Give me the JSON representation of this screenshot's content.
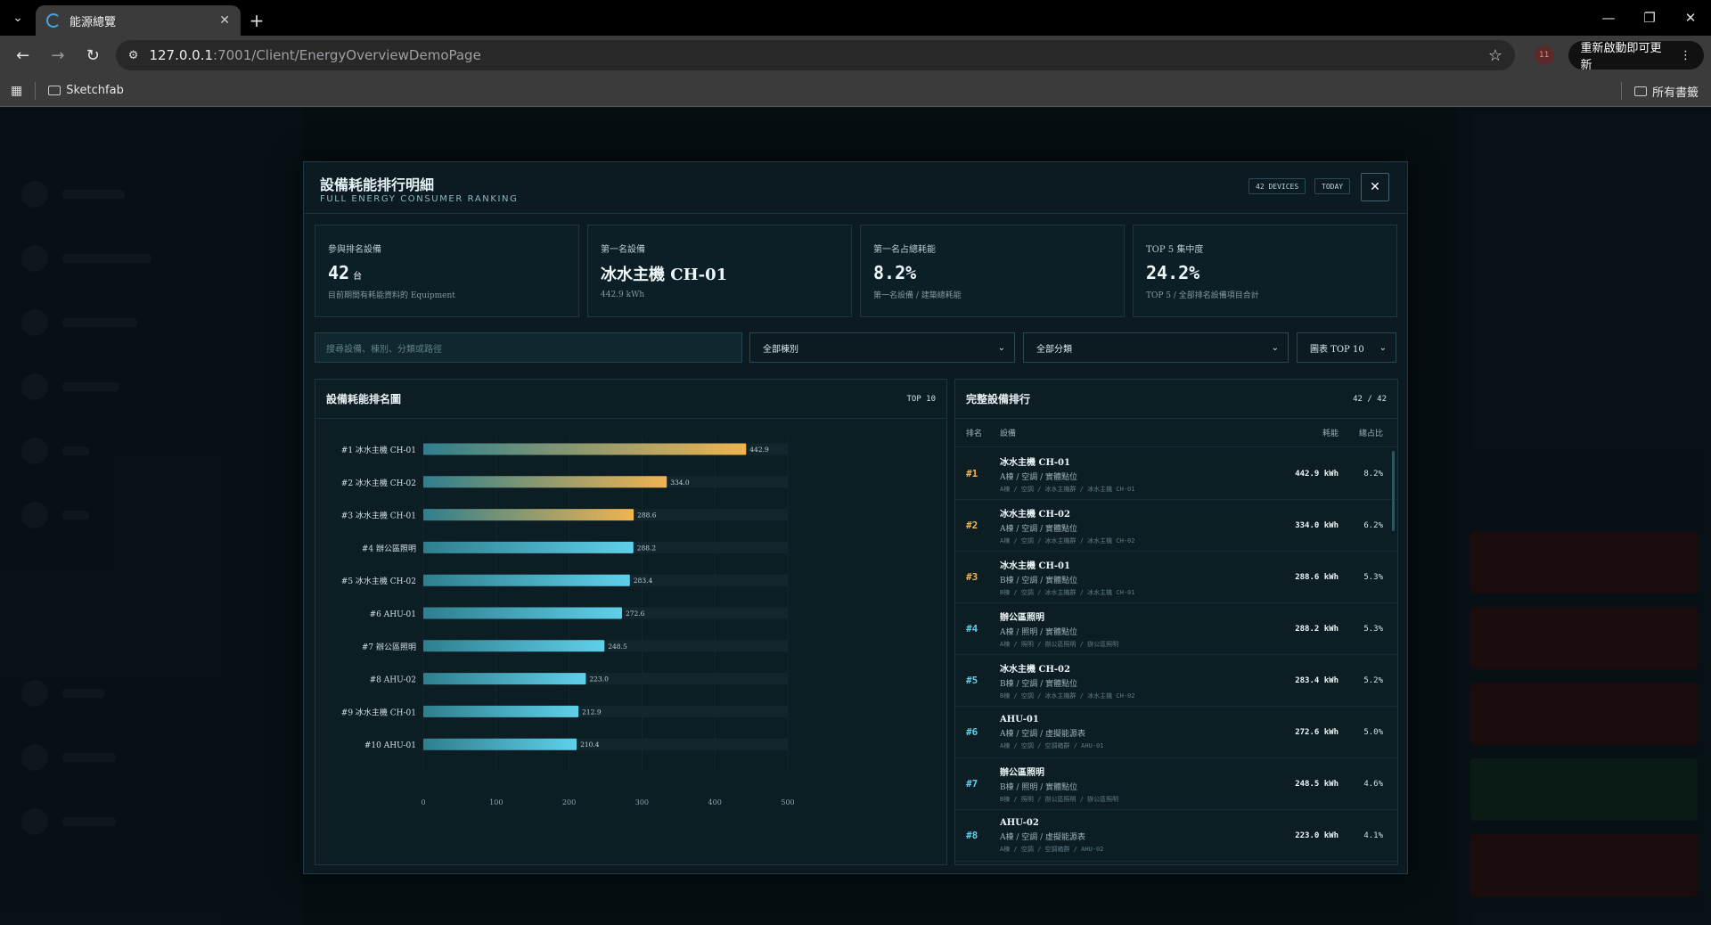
{
  "browser": {
    "tab_title": "能源總覽",
    "url_host": "127.0.0.1",
    "url_rest": ":7001/Client/EnergyOverviewDemoPage",
    "profile_badge": "11",
    "update_label": "重新啟動即可更新",
    "bookmark_1": "Sketchfab",
    "all_bookmarks": "所有書籤"
  },
  "modal": {
    "title": "設備耗能排行明細",
    "subtitle": "FULL ENERGY CONSUMER RANKING",
    "badge_devices": "42 DEVICES",
    "badge_today": "TODAY",
    "close_label": "✕"
  },
  "stats": [
    {
      "label": "參與排名設備",
      "value": "42",
      "unit": "台",
      "note": "目前期間有耗能資料的 Equipment"
    },
    {
      "label": "第一名設備",
      "value": "冰水主機 CH-01",
      "unit": "",
      "note": "442.9 kWh"
    },
    {
      "label": "第一名占總耗能",
      "value": "8.2%",
      "unit": "",
      "note": "第一名設備 / 建築總耗能"
    },
    {
      "label": "TOP 5 集中度",
      "value": "24.2%",
      "unit": "",
      "note": "TOP 5 / 全部排名設備項目合計"
    }
  ],
  "filters": {
    "search_placeholder": "搜尋設備、棟別、分類或路徑",
    "building": "全部棟別",
    "category": "全部分類",
    "chart_top": "圖表 TOP 10"
  },
  "chart_panel": {
    "title": "設備耗能排名圖",
    "tag": "TOP 10"
  },
  "chart_data": {
    "type": "bar",
    "orientation": "horizontal",
    "categories": [
      "#1 冰水主機 CH-01",
      "#2 冰水主機 CH-02",
      "#3 冰水主機 CH-01",
      "#4 辦公區照明",
      "#5 冰水主機 CH-02",
      "#6 AHU-01",
      "#7 辦公區照明",
      "#8 AHU-02",
      "#9 冰水主機 CH-01",
      "#10 AHU-01"
    ],
    "values": [
      442.9,
      334.0,
      288.6,
      288.2,
      283.4,
      272.6,
      248.5,
      223.0,
      212.9,
      210.4
    ],
    "value_labels": [
      "442.9",
      "334.0",
      "288.6",
      "288.2",
      "283.4",
      "272.6",
      "248.5",
      "223.0",
      "212.9",
      "210.4"
    ],
    "xlim": [
      0,
      500
    ],
    "xticks": [
      "0",
      "100",
      "200",
      "300",
      "400",
      "500"
    ],
    "colors": {
      "top": "#f0b450",
      "start": "#2f7f8e",
      "base": "#5fd0ea",
      "track": "#13262d"
    }
  },
  "table_panel": {
    "title": "完整設備排行",
    "count": "42 / 42"
  },
  "table": {
    "headers": {
      "rank": "排名",
      "device": "設備",
      "energy": "耗能",
      "share": "總占比"
    },
    "rows": [
      {
        "rank": "#1",
        "name": "冰水主機 CH-01",
        "loc": "A棟 / 空調 / 實體點位",
        "path": "A棟 / 空調 / 冰水主機群 / 冰水主機 CH-01",
        "energy": "442.9 kWh",
        "share": "8.2%",
        "color": "#f0b450"
      },
      {
        "rank": "#2",
        "name": "冰水主機 CH-02",
        "loc": "A棟 / 空調 / 實體點位",
        "path": "A棟 / 空調 / 冰水主機群 / 冰水主機 CH-02",
        "energy": "334.0 kWh",
        "share": "6.2%",
        "color": "#f0b450"
      },
      {
        "rank": "#3",
        "name": "冰水主機 CH-01",
        "loc": "B棟 / 空調 / 實體點位",
        "path": "B棟 / 空調 / 冰水主機群 / 冰水主機 CH-01",
        "energy": "288.6 kWh",
        "share": "5.3%",
        "color": "#f0b450"
      },
      {
        "rank": "#4",
        "name": "辦公區照明",
        "loc": "A棟 / 照明 / 實體點位",
        "path": "A棟 / 照明 / 辦公區照明 / 辦公區照明",
        "energy": "288.2 kWh",
        "share": "5.3%",
        "color": "#5fd0ea"
      },
      {
        "rank": "#5",
        "name": "冰水主機 CH-02",
        "loc": "B棟 / 空調 / 實體點位",
        "path": "B棟 / 空調 / 冰水主機群 / 冰水主機 CH-02",
        "energy": "283.4 kWh",
        "share": "5.2%",
        "color": "#5fd0ea"
      },
      {
        "rank": "#6",
        "name": "AHU-01",
        "loc": "A棟 / 空調 / 虛擬能源表",
        "path": "A棟 / 空調 / 空調箱群 / AHU-01",
        "energy": "272.6 kWh",
        "share": "5.0%",
        "color": "#5fd0ea"
      },
      {
        "rank": "#7",
        "name": "辦公區照明",
        "loc": "B棟 / 照明 / 實體點位",
        "path": "B棟 / 照明 / 辦公區照明 / 辦公區照明",
        "energy": "248.5 kWh",
        "share": "4.6%",
        "color": "#5fd0ea"
      },
      {
        "rank": "#8",
        "name": "AHU-02",
        "loc": "A棟 / 空調 / 虛擬能源表",
        "path": "A棟 / 空調 / 空調箱群 / AHU-02",
        "energy": "223.0 kWh",
        "share": "4.1%",
        "color": "#5fd0ea"
      }
    ]
  }
}
